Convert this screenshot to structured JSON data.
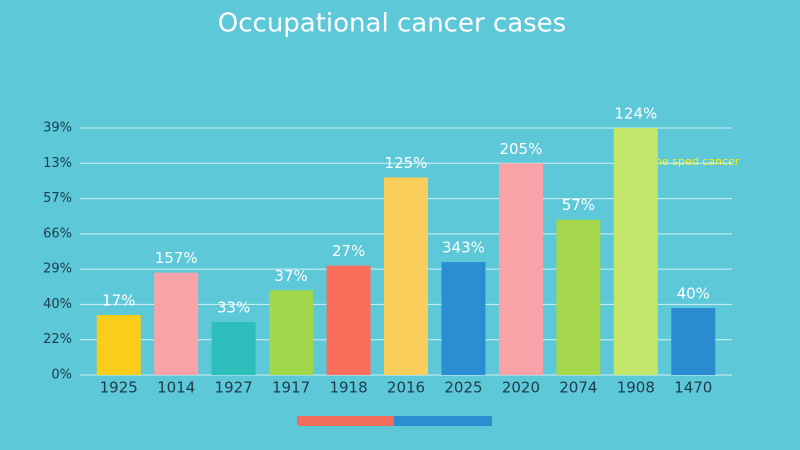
{
  "chart_data": {
    "type": "bar",
    "title": "Occupational cancer cases",
    "categories": [
      "1925",
      "1014",
      "1927",
      "1917",
      "1918",
      "2016",
      "2025",
      "2020",
      "2074",
      "1908",
      "1470"
    ],
    "values": [
      1.7,
      2.9,
      1.5,
      2.4,
      3.1,
      5.6,
      3.2,
      6.0,
      4.4,
      7.0,
      1.9
    ],
    "bar_labels": [
      "17%",
      "157%",
      "33%",
      "37%",
      "27%",
      "125%",
      "343%",
      "205%",
      "57%",
      "124%",
      "40%"
    ],
    "colors": [
      "#f9cd1a",
      "#f9a3a8",
      "#2dbdbb",
      "#a2d64b",
      "#f96d5a",
      "#fbcd5a",
      "#2a8fd2",
      "#f9a3a8",
      "#a5d64b",
      "#c3e76b",
      "#2a8bd0"
    ],
    "ylim": [
      0,
      7
    ],
    "yticks": [
      {
        "value": 0,
        "label": "0%"
      },
      {
        "value": 1,
        "label": "22%"
      },
      {
        "value": 2,
        "label": "40%"
      },
      {
        "value": 3,
        "label": "29%"
      },
      {
        "value": 4,
        "label": "66%"
      },
      {
        "value": 5,
        "label": "57%"
      },
      {
        "value": 6,
        "label": "13%"
      },
      {
        "value": 7,
        "label": "39%"
      }
    ],
    "grid": true,
    "annotation": "ne sped cancer"
  }
}
